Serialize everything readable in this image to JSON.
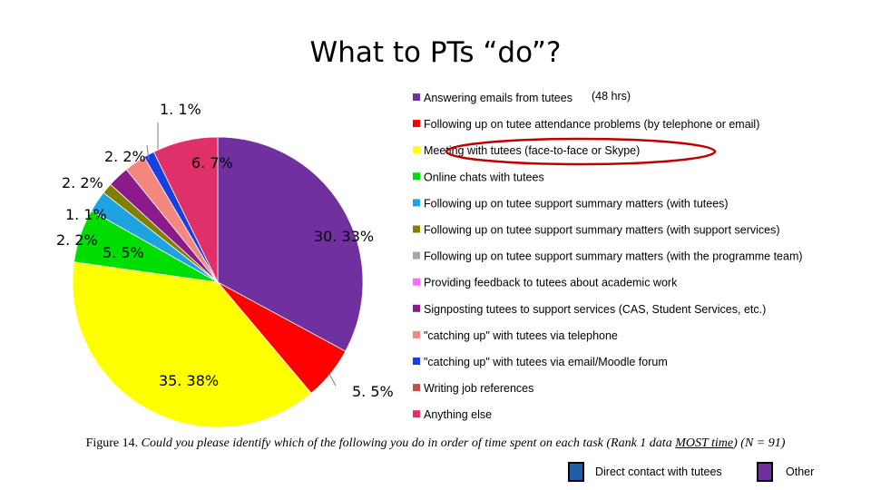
{
  "title": "What to PTs “do”?",
  "legend_note": "(48 hrs)",
  "caption": {
    "prefix": "Figure 14.",
    "italic_before": " Could you please identify which of the following you do in order of time spent on each task (Rank 1 data ",
    "underlined": "MOST time",
    "italic_after": ") (N = 91)"
  },
  "category_legend": [
    {
      "label": "Direct contact with tutees",
      "color": "#1f5fa8"
    },
    {
      "label": "Other",
      "color": "#7030a0"
    }
  ],
  "highlight_color": "#c00000",
  "chart_data": {
    "type": "pie",
    "title": "What to PTs “do”?",
    "legend_placement": "right",
    "slices": [
      {
        "label": "Answering emails from tutees",
        "value": 30.33,
        "display": "30. 33%",
        "color": "#7030a0"
      },
      {
        "label": "Following up on tutee attendance problems (by telephone or email)",
        "value": 5.5,
        "display": "5. 5%",
        "color": "#ff0000"
      },
      {
        "label": "Meeting with tutees (face-to-face or Skype)",
        "value": 35.38,
        "display": "35. 38%",
        "color": "#ffff00",
        "highlighted": true
      },
      {
        "label": "Online chats with tutees",
        "value": 5.5,
        "display": "5. 5%",
        "color": "#00dd00"
      },
      {
        "label": "Following up on tutee support summary matters (with tutees)",
        "value": 2.2,
        "display": "2. 2%",
        "color": "#1fa3e0"
      },
      {
        "label": "Following up on tutee support summary matters (with support services)",
        "value": 1.1,
        "display": "1. 1%",
        "color": "#808000"
      },
      {
        "label": "Following up on tutee support summary matters (with the programme team)",
        "value": 0,
        "display": "",
        "color": "#a6a6a6"
      },
      {
        "label": "Providing feedback to tutees about academic work",
        "value": 0,
        "display": "",
        "color": "#ff66ff"
      },
      {
        "label": "Signposting tutees to support services (CAS, Student Services, etc.)",
        "value": 2.2,
        "display": "2. 2%",
        "color": "#8b1a8b"
      },
      {
        "label": "\"catching up\" with tutees via telephone",
        "value": 2.2,
        "display": "2. 2%",
        "color": "#f4877e"
      },
      {
        "label": "\"catching up\" with tutees via email/Moodle forum",
        "value": 1.1,
        "display": "1. 1%",
        "color": "#1a3fe0"
      },
      {
        "label": "Writing job references",
        "value": 0,
        "display": "",
        "color": "#c0504d"
      },
      {
        "label": "Anything else",
        "value": 6.7,
        "display": "6. 7%",
        "color": "#e0306a"
      }
    ]
  }
}
